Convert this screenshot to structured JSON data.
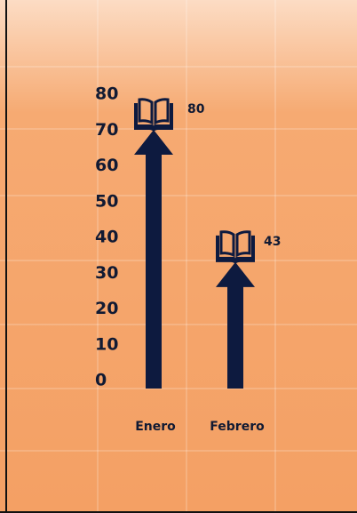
{
  "chart_data": {
    "type": "pictograph-arrow",
    "categories": [
      "Enero",
      "Febrero"
    ],
    "values": [
      80,
      43
    ],
    "color": "#0d1a3f",
    "ylim": [
      0,
      80
    ],
    "yticks": [
      0,
      10,
      20,
      30,
      40,
      50,
      60,
      70,
      80
    ]
  }
}
